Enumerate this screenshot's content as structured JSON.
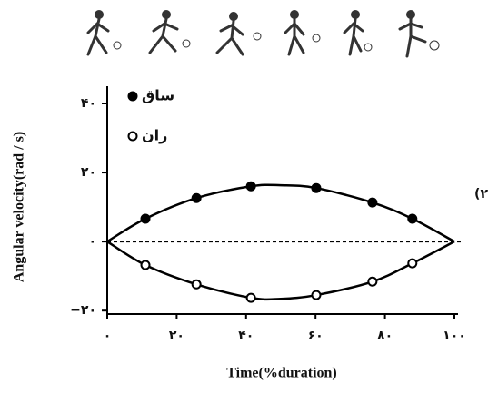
{
  "chart_data": {
    "type": "line",
    "x_label": "Time(%duration)",
    "y_label": "Angular velocity(rad / s)",
    "annotation": "(۲",
    "xlim": [
      0,
      100
    ],
    "ylim": [
      -21,
      45
    ],
    "xticks": [
      {
        "value": 0,
        "label": "۰"
      },
      {
        "value": 20,
        "label": "۲۰"
      },
      {
        "value": 40,
        "label": "۴۰"
      },
      {
        "value": 60,
        "label": "۶۰"
      },
      {
        "value": 80,
        "label": "۸۰"
      },
      {
        "value": 100,
        "label": "۱۰۰"
      }
    ],
    "yticks": [
      {
        "value": -20,
        "label": "−۲۰"
      },
      {
        "value": 0,
        "label": "۰"
      },
      {
        "value": 20,
        "label": "۲۰"
      },
      {
        "value": 40,
        "label": "۴۰"
      }
    ],
    "reference_line": 0,
    "series": [
      {
        "name": "ساق",
        "color": "#000000",
        "marker": "filled",
        "x": [
          11,
          25.7,
          41.4,
          60.2,
          76.4,
          87.9
        ],
        "values": [
          6.6,
          12.6,
          16,
          15.5,
          11.3,
          6.6
        ],
        "curve": {
          "x": [
            0,
            11,
            25.7,
            41.4,
            50,
            60.2,
            76.4,
            87.9,
            100
          ],
          "values": [
            0,
            6.6,
            12.6,
            16,
            16.3,
            15.5,
            11.3,
            6.6,
            0
          ]
        }
      },
      {
        "name": "ران",
        "color": "#000000",
        "marker": "open",
        "x": [
          11,
          25.7,
          41.4,
          60.2,
          76.4,
          87.9
        ],
        "values": [
          -6.8,
          -12.4,
          -16.3,
          -15.5,
          -11.6,
          -6.3
        ],
        "curve": {
          "x": [
            0,
            11,
            25.7,
            41.4,
            50,
            60.2,
            76.4,
            87.9,
            100
          ],
          "values": [
            0,
            -6.8,
            -12.4,
            -16.3,
            -16.6,
            -15.5,
            -11.6,
            -6.3,
            0
          ]
        }
      }
    ]
  }
}
